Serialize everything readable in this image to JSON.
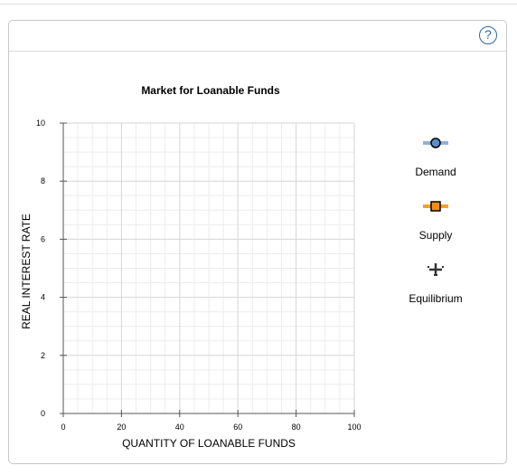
{
  "help": {
    "label": "?"
  },
  "chart_data": {
    "type": "line",
    "title": "Market for Loanable Funds",
    "xlabel": "QUANTITY OF LOANABLE FUNDS",
    "ylabel": "REAL INTEREST RATE",
    "xlim": [
      0,
      100
    ],
    "ylim": [
      0,
      10
    ],
    "x_ticks": [
      "0",
      "20",
      "40",
      "60",
      "80",
      "100"
    ],
    "y_ticks": [
      "0",
      "2",
      "4",
      "6",
      "8",
      "10"
    ],
    "grid": true,
    "series": []
  },
  "legend": {
    "items": [
      {
        "id": "demand",
        "label": "Demand",
        "icon": "demand-line-circle-icon",
        "line_color": "#8fb2d4",
        "marker_color": "#5b8fc7"
      },
      {
        "id": "supply",
        "label": "Supply",
        "icon": "supply-line-square-icon",
        "line_color": "#f4a024",
        "marker_color": "#ef8f1a"
      },
      {
        "id": "equilibrium",
        "label": "Equilibrium",
        "icon": "equilibrium-plus-icon",
        "line_color": "#333333",
        "marker_color": "#333333"
      }
    ]
  }
}
